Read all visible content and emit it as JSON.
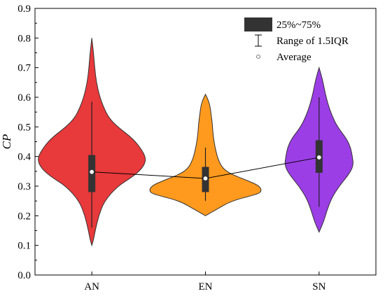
{
  "chart_data": {
    "type": "violin",
    "title": "",
    "xlabel": "",
    "ylabel": "CP",
    "ylim": [
      0,
      0.9
    ],
    "yticks": [
      "0.0",
      "0.1",
      "0.2",
      "0.3",
      "0.4",
      "0.5",
      "0.6",
      "0.7",
      "0.8",
      "0.9"
    ],
    "grid": false,
    "legend_position": "top-right",
    "legend": {
      "box_label": "25%~75%",
      "whisker_label": "Range of 1.5IQR",
      "mean_label": "Average"
    },
    "categories": [
      "AN",
      "EN",
      "SN"
    ],
    "series": [
      {
        "category": "AN",
        "color": "#e8393b",
        "q1": 0.28,
        "median": 0.35,
        "q3": 0.405,
        "whisker_low": 0.16,
        "whisker_high": 0.585,
        "mean": 0.348,
        "min": 0.1,
        "max": 0.8,
        "density": [
          [
            0.1,
            0.0
          ],
          [
            0.12,
            0.03
          ],
          [
            0.15,
            0.06
          ],
          [
            0.2,
            0.12
          ],
          [
            0.25,
            0.22
          ],
          [
            0.3,
            0.45
          ],
          [
            0.33,
            0.7
          ],
          [
            0.36,
            0.88
          ],
          [
            0.39,
            0.95
          ],
          [
            0.42,
            0.88
          ],
          [
            0.46,
            0.72
          ],
          [
            0.5,
            0.45
          ],
          [
            0.53,
            0.3
          ],
          [
            0.56,
            0.22
          ],
          [
            0.6,
            0.14
          ],
          [
            0.65,
            0.08
          ],
          [
            0.7,
            0.05
          ],
          [
            0.75,
            0.03
          ],
          [
            0.8,
            0.0
          ]
        ]
      },
      {
        "category": "EN",
        "color": "#ff9a1e",
        "q1": 0.28,
        "median": 0.325,
        "q3": 0.365,
        "whisker_low": 0.25,
        "whisker_high": 0.43,
        "mean": 0.326,
        "min": 0.2,
        "max": 0.61,
        "density": [
          [
            0.2,
            0.0
          ],
          [
            0.22,
            0.18
          ],
          [
            0.25,
            0.45
          ],
          [
            0.27,
            0.85
          ],
          [
            0.28,
            0.98
          ],
          [
            0.3,
            0.95
          ],
          [
            0.32,
            0.72
          ],
          [
            0.34,
            0.45
          ],
          [
            0.36,
            0.3
          ],
          [
            0.39,
            0.22
          ],
          [
            0.42,
            0.18
          ],
          [
            0.45,
            0.15
          ],
          [
            0.48,
            0.13
          ],
          [
            0.51,
            0.12
          ],
          [
            0.54,
            0.1
          ],
          [
            0.57,
            0.08
          ],
          [
            0.59,
            0.05
          ],
          [
            0.61,
            0.0
          ]
        ]
      },
      {
        "category": "SN",
        "color": "#9b3ee6",
        "q1": 0.345,
        "median": 0.39,
        "q3": 0.455,
        "whisker_low": 0.23,
        "whisker_high": 0.6,
        "mean": 0.397,
        "min": 0.145,
        "max": 0.7,
        "density": [
          [
            0.145,
            0.0
          ],
          [
            0.18,
            0.08
          ],
          [
            0.22,
            0.14
          ],
          [
            0.26,
            0.22
          ],
          [
            0.3,
            0.35
          ],
          [
            0.34,
            0.52
          ],
          [
            0.37,
            0.6
          ],
          [
            0.4,
            0.58
          ],
          [
            0.43,
            0.55
          ],
          [
            0.46,
            0.48
          ],
          [
            0.5,
            0.32
          ],
          [
            0.54,
            0.22
          ],
          [
            0.58,
            0.15
          ],
          [
            0.62,
            0.1
          ],
          [
            0.66,
            0.06
          ],
          [
            0.7,
            0.0
          ]
        ]
      }
    ]
  }
}
